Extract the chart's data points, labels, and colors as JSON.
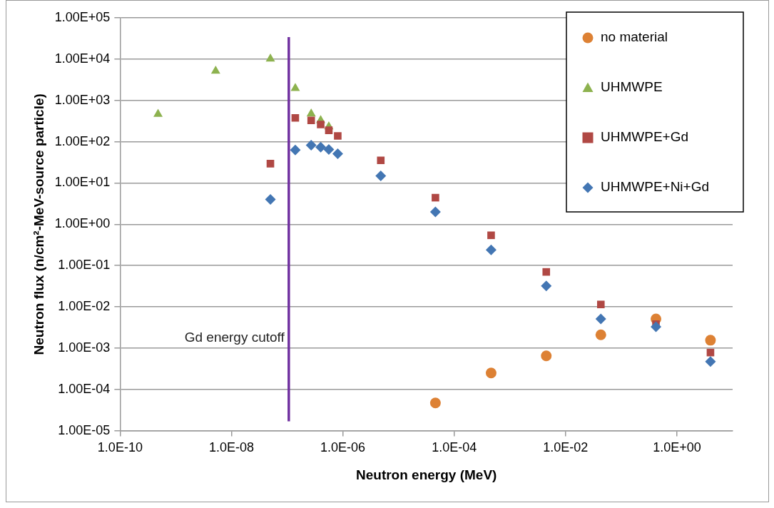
{
  "chart_data": {
    "type": "scatter",
    "xlabel": "Neutron energy (MeV)",
    "ylabel": "Neutron flux (n/cm²-MeV-source particle)",
    "log": "xy",
    "xlim": [
      1e-10,
      10
    ],
    "xticks": [
      {
        "value": 1e-10,
        "label": "1.0E-10"
      },
      {
        "value": 1e-08,
        "label": "1.0E-08"
      },
      {
        "value": 1e-06,
        "label": "1.0E-06"
      },
      {
        "value": 0.0001,
        "label": "1.0E-04"
      },
      {
        "value": 0.01,
        "label": "1.0E-02"
      },
      {
        "value": 1,
        "label": "1.0E+00"
      }
    ],
    "ylim": [
      1e-05,
      100000.0
    ],
    "yticks": [
      {
        "value": 1e-05,
        "label": "1.00E-05"
      },
      {
        "value": 0.0001,
        "label": "1.00E-04"
      },
      {
        "value": 0.001,
        "label": "1.00E-03"
      },
      {
        "value": 0.01,
        "label": "1.00E-02"
      },
      {
        "value": 0.1,
        "label": "1.00E-01"
      },
      {
        "value": 1,
        "label": "1.00E+00"
      },
      {
        "value": 10,
        "label": "1.00E+01"
      },
      {
        "value": 100,
        "label": "1.00E+02"
      },
      {
        "value": 1000,
        "label": "1.00E+03"
      },
      {
        "value": 10000,
        "label": "1.00E+04"
      },
      {
        "value": 100000,
        "label": "1.00E+05"
      }
    ],
    "grid": "y",
    "legend": "top right",
    "series": [
      {
        "name": "no material",
        "color": "#dd8134",
        "marker": "circle",
        "x": [
          4.6e-05,
          0.00046,
          0.0045,
          0.043,
          0.42,
          4.0
        ],
        "values": [
          4.7e-05,
          0.00025,
          0.00065,
          0.0021,
          0.0051,
          0.00155
        ]
      },
      {
        "name": "UHMWPE",
        "color": "#8db24f",
        "marker": "triangle",
        "x": [
          4.8e-10,
          5.2e-09,
          5e-08,
          1.4e-07,
          2.7e-07,
          4e-07,
          5.6e-07
        ],
        "values": [
          464,
          5160,
          10160,
          1970,
          475,
          327,
          232
        ]
      },
      {
        "name": "UHMWPE+Gd",
        "color": "#b04844",
        "marker": "square",
        "x": [
          5e-08,
          1.4e-07,
          2.7e-07,
          4e-07,
          5.6e-07,
          8.1e-07,
          4.8e-06,
          4.6e-05,
          0.00046,
          0.0045,
          0.043,
          0.42,
          4.0
        ],
        "values": [
          29.3,
          377,
          327,
          260,
          189,
          138,
          35.2,
          4.4,
          0.54,
          0.07,
          0.0114,
          0.0038,
          0.00078
        ]
      },
      {
        "name": "UHMWPE+Ni+Gd",
        "color": "#4376b3",
        "marker": "diamond",
        "x": [
          5e-08,
          1.4e-07,
          2.7e-07,
          4e-07,
          5.6e-07,
          8.1e-07,
          4.8e-06,
          4.6e-05,
          0.00046,
          0.0045,
          0.043,
          0.42,
          4.0
        ],
        "values": [
          4.0,
          62.7,
          82.6,
          74,
          64.6,
          51,
          14.8,
          2.0,
          0.24,
          0.032,
          0.0051,
          0.0033,
          0.00047
        ]
      }
    ],
    "ref_lines": [
      {
        "axis": "x",
        "value": 1.07e-07,
        "label": "Gd energy cutoff",
        "color": "#7030a0"
      }
    ]
  }
}
